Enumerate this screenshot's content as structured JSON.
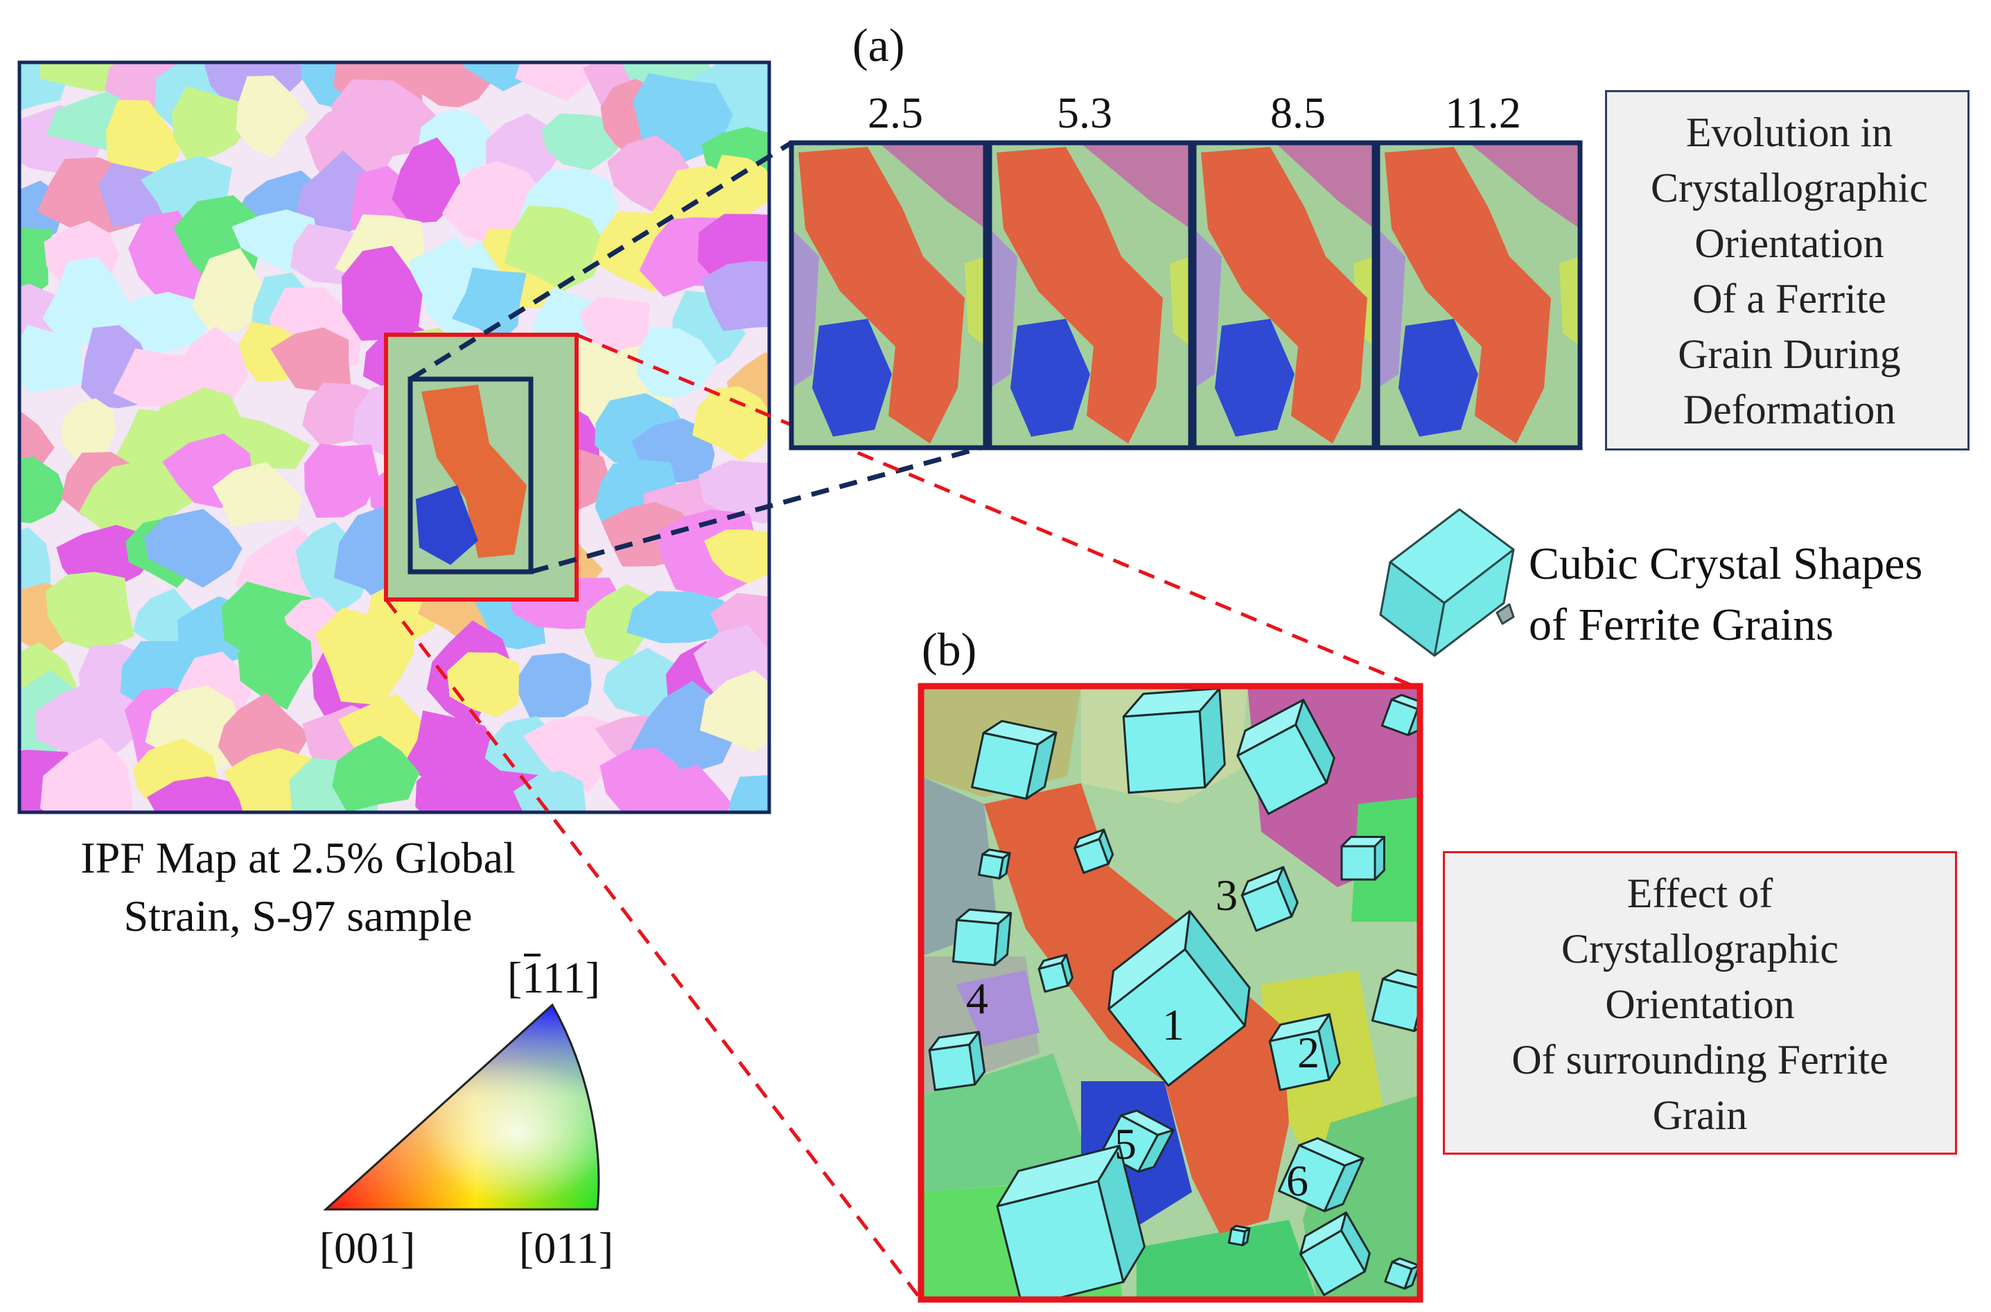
{
  "panel_a": {
    "label": "(a)",
    "strains": [
      "2.5",
      "5.3",
      "8.5",
      "11.2"
    ]
  },
  "panel_b": {
    "label": "(b)",
    "grain_numbers": [
      "1",
      "2",
      "3",
      "4",
      "5",
      "6"
    ]
  },
  "ipf_map": {
    "caption_line1": "IPF Map at 2.5% Global",
    "caption_line2": "Strain, S-97 sample"
  },
  "legend_triangle": {
    "top_label_bar": "1",
    "top_label_rest": "11",
    "bottom_left": "[001]",
    "bottom_right": "[011]"
  },
  "evolution_box": {
    "lines": [
      "Evolution in",
      "Crystallographic",
      "Orientation",
      "Of a Ferrite",
      "Grain During",
      "Deformation"
    ]
  },
  "cube_note": {
    "line1": "Cubic Crystal Shapes",
    "line2": "of Ferrite Grains"
  },
  "effect_box": {
    "lines": [
      "Effect of",
      "Crystallographic",
      "Orientation",
      "Of surrounding Ferrite",
      "Grain"
    ]
  },
  "colors": {
    "navy": "#14285a",
    "red": "#e8141c",
    "cube_fill": "#7ff0ee",
    "box_fill": "#f0f0f0"
  }
}
